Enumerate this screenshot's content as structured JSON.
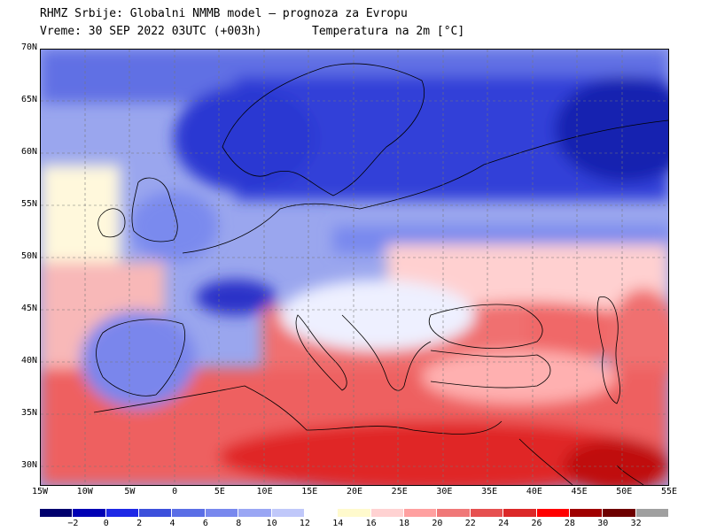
{
  "header": {
    "line1": "RHMZ Srbije: Globalni NMMB model — prognoza za Evropu",
    "line2": "Vreme: 30 SEP 2022 03UTC (+003h)",
    "variable": "Temperatura na 2m [°C]"
  },
  "axes": {
    "lat_ticks": [
      "70N",
      "65N",
      "60N",
      "55N",
      "50N",
      "45N",
      "40N",
      "35N",
      "30N"
    ],
    "lon_ticks": [
      "15W",
      "10W",
      "5W",
      "0",
      "5E",
      "10E",
      "15E",
      "20E",
      "25E",
      "30E",
      "35E",
      "40E",
      "45E",
      "50E",
      "55E"
    ]
  },
  "legend": {
    "labels": [
      "−2",
      "0",
      "2",
      "4",
      "6",
      "8",
      "10",
      "12",
      "14",
      "16",
      "18",
      "20",
      "22",
      "24",
      "26",
      "28",
      "30",
      "32"
    ],
    "colors": [
      "#00006e",
      "#0000b4",
      "#1e28e6",
      "#3c50dc",
      "#5a6ee6",
      "#7888ee",
      "#9aa6f4",
      "#c0c8fa",
      "#ffffff",
      "#fffacd",
      "#ffd2d2",
      "#ffa0a0",
      "#f07878",
      "#e65050",
      "#dc2828",
      "#ff0000",
      "#a00000",
      "#6e0000",
      "#a0a0a0"
    ]
  },
  "map": {
    "region": "Evropa",
    "fields": {
      "sea_color": "#f3a6a6",
      "north_cold_color": "#2233d0",
      "central_color": "#6c7ee8",
      "mediterranean_color": "#e84040",
      "africa_hot_color": "#d81818"
    }
  }
}
